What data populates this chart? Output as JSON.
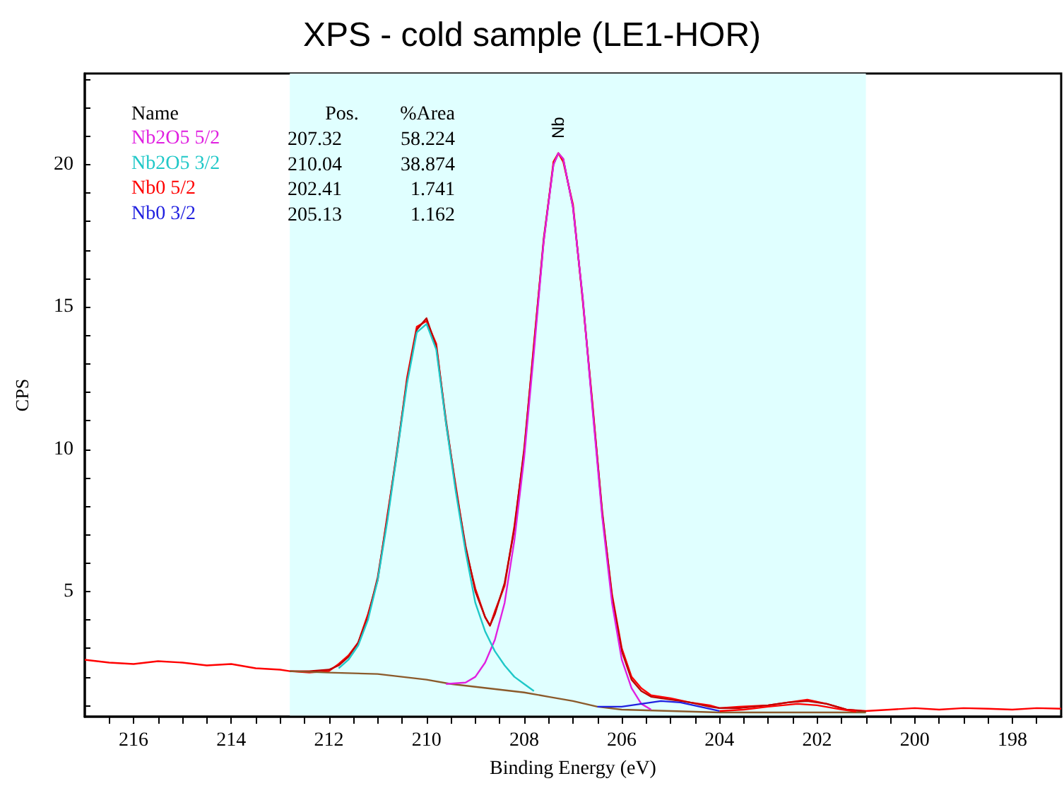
{
  "chart_data": {
    "type": "line",
    "title": "XPS - cold sample (LE1-HOR)",
    "xlabel": "Binding Energy (eV)",
    "ylabel": "CPS",
    "xlim": [
      217,
      197
    ],
    "xticks": [
      {
        "value": 216.5,
        "label": null
      },
      216,
      {
        "value": 215.5,
        "label": null
      },
      {
        "value": 215,
        "label": null
      },
      {
        "value": 214.5,
        "label": null
      },
      214,
      {
        "value": 213.5,
        "label": null
      },
      {
        "value": 213,
        "label": null
      },
      {
        "value": 212.5,
        "label": null
      },
      212,
      {
        "value": 211.5,
        "label": null
      },
      {
        "value": 211,
        "label": null
      },
      {
        "value": 210.5,
        "label": null
      },
      210,
      {
        "value": 209.5,
        "label": null
      },
      {
        "value": 209,
        "label": null
      },
      {
        "value": 208.5,
        "label": null
      },
      208,
      {
        "value": 207.5,
        "label": null
      },
      {
        "value": 207,
        "label": null
      },
      {
        "value": 206.5,
        "label": null
      },
      206,
      {
        "value": 205.5,
        "label": null
      },
      {
        "value": 205,
        "label": null
      },
      {
        "value": 204.5,
        "label": null
      },
      204,
      {
        "value": 203.5,
        "label": null
      },
      {
        "value": 203,
        "label": null
      },
      {
        "value": 202.5,
        "label": null
      },
      202,
      {
        "value": 201.5,
        "label": null
      },
      {
        "value": 201,
        "label": null
      },
      {
        "value": 200.5,
        "label": null
      },
      200,
      {
        "value": 199.5,
        "label": null
      },
      {
        "value": 199,
        "label": null
      },
      {
        "value": 198.5,
        "label": null
      },
      198,
      {
        "value": 197.5,
        "label": null
      }
    ],
    "ylim": [
      0.6,
      23.2
    ],
    "yticks": [
      {
        "value": 1,
        "label": null
      },
      {
        "value": 2,
        "label": null
      },
      {
        "value": 3,
        "label": null
      },
      {
        "value": 4,
        "label": null
      },
      5,
      {
        "value": 6,
        "label": null
      },
      {
        "value": 7,
        "label": null
      },
      {
        "value": 8,
        "label": null
      },
      {
        "value": 9,
        "label": null
      },
      10,
      {
        "value": 11,
        "label": null
      },
      {
        "value": 12,
        "label": null
      },
      {
        "value": 13,
        "label": null
      },
      {
        "value": 14,
        "label": null
      },
      15,
      {
        "value": 16,
        "label": null
      },
      {
        "value": 17,
        "label": null
      },
      {
        "value": 18,
        "label": null
      },
      {
        "value": 19,
        "label": null
      },
      20,
      {
        "value": 21,
        "label": null
      },
      {
        "value": 22,
        "label": null
      },
      {
        "value": 23,
        "label": null
      }
    ],
    "grid": false,
    "marker": "none",
    "line_style": "solid",
    "legend": "top left",
    "legend_title": "Name",
    "bands": [
      {
        "axis": "x",
        "from": 212.8,
        "to": 201,
        "color": "#e0ffff"
      }
    ],
    "annotations": [
      "Pos.",
      "%Area",
      "207.32",
      "58.224",
      "210.04",
      "38.874",
      "202.41",
      "1.741",
      "205.13",
      "1.162",
      "Nb"
    ],
    "series": [
      {
        "color": "#ff0000",
        "x": [
          217,
          216.5,
          216,
          215.5,
          215,
          214.5,
          214,
          213.5,
          213,
          212.8,
          212.4,
          212,
          211.8,
          211.6,
          211.4,
          211.2,
          211,
          210.8,
          210.6,
          210.4,
          210.2,
          210,
          209.8,
          209.6,
          209.4,
          209.2,
          209,
          208.8,
          208.7,
          208.6,
          208.4,
          208.2,
          208,
          207.8,
          207.6,
          207.4,
          207.3,
          207.2,
          207,
          206.8,
          206.6,
          206.4,
          206.2,
          206,
          205.8,
          205.6,
          205.4,
          205,
          204.6,
          204.2,
          204,
          203.6,
          203,
          202.6,
          202.2,
          201.8,
          201.4,
          201,
          200.5,
          200,
          199.5,
          199,
          198.5,
          198,
          197.5,
          197
        ],
        "values": [
          2.6,
          2.5,
          2.45,
          2.55,
          2.5,
          2.4,
          2.45,
          2.3,
          2.25,
          2.2,
          2.15,
          2.2,
          2.45,
          2.75,
          3.2,
          4.2,
          5.4,
          7.7,
          9.9,
          12.5,
          14.3,
          14.5,
          13.7,
          10.9,
          8.7,
          6.5,
          5.1,
          4.1,
          3.8,
          4.3,
          5.2,
          7.3,
          9.9,
          13.7,
          17.3,
          20.1,
          20.4,
          20.1,
          18.6,
          15.2,
          11.6,
          7.7,
          4.9,
          3.0,
          2.0,
          1.6,
          1.35,
          1.25,
          1.1,
          1.0,
          0.9,
          0.95,
          1.0,
          1.1,
          1.2,
          1.05,
          0.85,
          0.8,
          0.85,
          0.9,
          0.85,
          0.9,
          0.88,
          0.85,
          0.9,
          0.88
        ]
      },
      {
        "color": "#c00000",
        "x": [
          212.8,
          212.4,
          212,
          211.8,
          211.6,
          211.4,
          211.2,
          211,
          210.8,
          210.6,
          210.4,
          210.2,
          210,
          209.8,
          209.6,
          209.4,
          209.2,
          209,
          208.8,
          208.7,
          208.6,
          208.4,
          208.2,
          208,
          207.8,
          207.6,
          207.4,
          207.3,
          207.2,
          207,
          206.8,
          206.6,
          206.4,
          206.2,
          206,
          205.8,
          205.6,
          205.4,
          205,
          204.6,
          204.2,
          204,
          203.6,
          203,
          202.6,
          202.2,
          201.8,
          201.4,
          201
        ],
        "values": [
          2.2,
          2.2,
          2.25,
          2.4,
          2.7,
          3.2,
          4.1,
          5.5,
          7.6,
          10,
          12.4,
          14.2,
          14.6,
          13.6,
          11,
          8.6,
          6.6,
          5,
          4.1,
          3.8,
          4.2,
          5.3,
          7.2,
          10,
          13.6,
          17.4,
          20,
          20.4,
          20.2,
          18.5,
          15.3,
          11.5,
          7.8,
          4.8,
          2.9,
          1.9,
          1.5,
          1.3,
          1.2,
          1.1,
          0.95,
          0.9,
          0.9,
          1,
          1.1,
          1.15,
          1.05,
          0.85,
          0.78
        ]
      },
      {
        "color": "#8b5a2b",
        "x": [
          212.8,
          212,
          211,
          210,
          209.5,
          209,
          208.5,
          208,
          207.5,
          207,
          206.5,
          206,
          205,
          204,
          203,
          202,
          201
        ],
        "values": [
          2.2,
          2.15,
          2.1,
          1.9,
          1.75,
          1.65,
          1.55,
          1.45,
          1.3,
          1.15,
          0.95,
          0.85,
          0.8,
          0.75,
          0.75,
          0.75,
          0.75
        ]
      },
      {
        "name": "Nb2O5 5/2",
        "color": "#e020e0",
        "x": [
          209.6,
          209.2,
          209,
          208.8,
          208.6,
          208.4,
          208.2,
          208,
          207.8,
          207.6,
          207.4,
          207.3,
          207.2,
          207,
          206.8,
          206.6,
          206.4,
          206.2,
          206,
          205.8,
          205.6,
          205.4
        ],
        "values": [
          1.75,
          1.8,
          2,
          2.5,
          3.3,
          4.6,
          6.8,
          9.7,
          13.4,
          17.3,
          20,
          20.4,
          20.2,
          18.5,
          15.3,
          11.4,
          7.6,
          4.6,
          2.6,
          1.6,
          1.05,
          0.85
        ]
      },
      {
        "name": "Nb2O5 3/2",
        "color": "#20c8c8",
        "x": [
          211.8,
          211.6,
          211.4,
          211.2,
          211,
          210.8,
          210.6,
          210.4,
          210.2,
          210,
          209.8,
          209.6,
          209.4,
          209.2,
          209,
          208.8,
          208.6,
          208.4,
          208.2,
          208,
          207.8
        ],
        "values": [
          2.3,
          2.6,
          3.1,
          4,
          5.4,
          7.5,
          9.9,
          12.3,
          14.1,
          14.4,
          13.5,
          10.9,
          8.5,
          6.4,
          4.6,
          3.6,
          2.9,
          2.4,
          2,
          1.75,
          1.5
        ]
      },
      {
        "name": "Nb0 5/2",
        "color": "#ff0000",
        "x": [
          204,
          203.5,
          203,
          202.4,
          202,
          201.5,
          201.2
        ],
        "values": [
          0.8,
          0.85,
          0.95,
          1.05,
          1,
          0.85,
          0.78
        ]
      },
      {
        "name": "Nb0 3/2",
        "color": "#2020e0",
        "x": [
          206.5,
          206,
          205.6,
          205.2,
          204.8,
          204.4,
          204
        ],
        "values": [
          0.95,
          0.95,
          1.05,
          1.15,
          1.1,
          0.95,
          0.8
        ]
      }
    ]
  }
}
